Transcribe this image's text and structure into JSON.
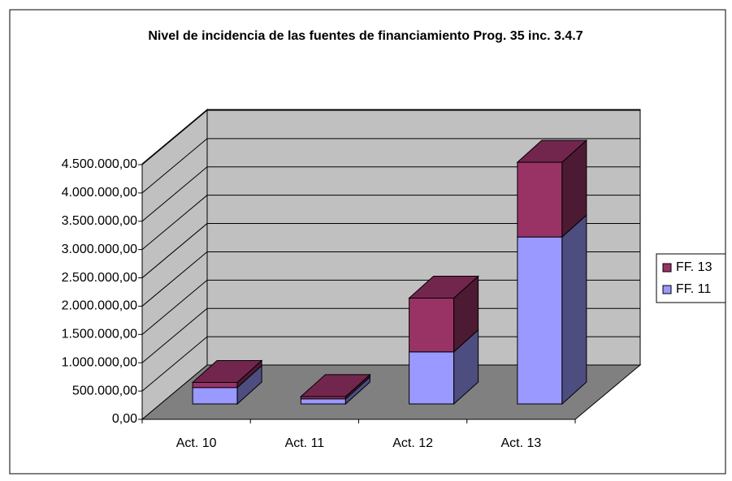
{
  "chart_data": {
    "type": "bar3d_stacked",
    "title": "Nivel de incidencia de las fuentes de financiamiento Prog. 35 inc. 3.4.7",
    "categories": [
      "Act. 10",
      "Act. 11",
      "Act. 12",
      "Act. 13"
    ],
    "series": [
      {
        "name": "FF. 11",
        "color": "#9999ff",
        "values": [
          290000,
          90000,
          920000,
          2950000
        ]
      },
      {
        "name": "FF. 13",
        "color": "#993366",
        "values": [
          90000,
          40000,
          950000,
          1320000
        ]
      }
    ],
    "ylim": [
      0,
      4500000
    ],
    "yticks": [
      {
        "value": 0,
        "label": "0,00"
      },
      {
        "value": 500000,
        "label": "500.000,00"
      },
      {
        "value": 1000000,
        "label": "1.000.000,00"
      },
      {
        "value": 1500000,
        "label": "1.500.000,00"
      },
      {
        "value": 2000000,
        "label": "2.000.000,00"
      },
      {
        "value": 2500000,
        "label": "2.500.000,00"
      },
      {
        "value": 3000000,
        "label": "3.000.000,00"
      },
      {
        "value": 3500000,
        "label": "3.500.000,00"
      },
      {
        "value": 4000000,
        "label": "4.000.000,00"
      },
      {
        "value": 4500000,
        "label": "4.500.000,00"
      }
    ],
    "grid": true,
    "legend": "right"
  }
}
